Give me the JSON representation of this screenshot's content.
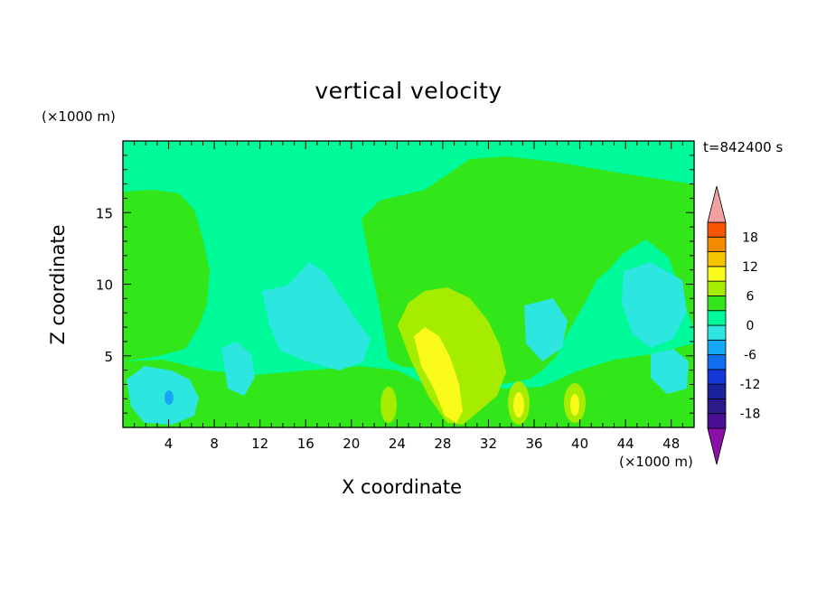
{
  "chart_data": {
    "type": "heatmap",
    "title": "vertical velocity",
    "xlabel": "X coordinate",
    "ylabel": "Z coordinate",
    "x_unit": "(×1000 m)",
    "y_unit": "(×1000 m)",
    "time_label": "t=842400 s",
    "xlim": [
      0,
      50
    ],
    "ylim": [
      0,
      20
    ],
    "x_ticks": [
      4,
      8,
      12,
      16,
      20,
      24,
      28,
      32,
      36,
      40,
      44,
      48
    ],
    "y_ticks": [
      5,
      10,
      15
    ],
    "colorbar": {
      "levels": [
        -21,
        -18,
        -15,
        -12,
        -9,
        -6,
        -3,
        0,
        3,
        6,
        9,
        12,
        15,
        18,
        21
      ],
      "tick_labels": [
        18,
        12,
        6,
        0,
        -6,
        -12,
        -18
      ],
      "colors": [
        "#4b0f95",
        "#2d1a8a",
        "#19229a",
        "#1437d6",
        "#0f6ef0",
        "#14a8f5",
        "#2ee6e0",
        "#00fa9a",
        "#33e61a",
        "#a6ec00",
        "#fafa1a",
        "#f5c300",
        "#f58a00",
        "#f55500",
        "#eb1d14"
      ],
      "over_color": "#f0a0a0",
      "under_color": "#8b0fa8"
    },
    "field_regions": [
      {
        "name": "background",
        "value": -1,
        "color": "#00fa9a"
      },
      {
        "name": "upper-left-updraft-zone",
        "value": 1,
        "color": "#33e61a"
      },
      {
        "name": "central-updraft-zone",
        "value": 1,
        "color": "#33e61a"
      },
      {
        "name": "central-updraft-core",
        "value": 5,
        "color": "#a6ec00"
      },
      {
        "name": "central-updraft-max",
        "value": 8,
        "color": "#fafa1a"
      },
      {
        "name": "lower-left-downdraft",
        "value": -4,
        "color": "#2ee6e0"
      },
      {
        "name": "mid-left-downdraft",
        "value": -4,
        "color": "#2ee6e0"
      },
      {
        "name": "right-downdraft",
        "value": -4,
        "color": "#2ee6e0"
      },
      {
        "name": "strongest-downdraft-cell",
        "value": -8,
        "color": "#14a8f5"
      }
    ]
  }
}
